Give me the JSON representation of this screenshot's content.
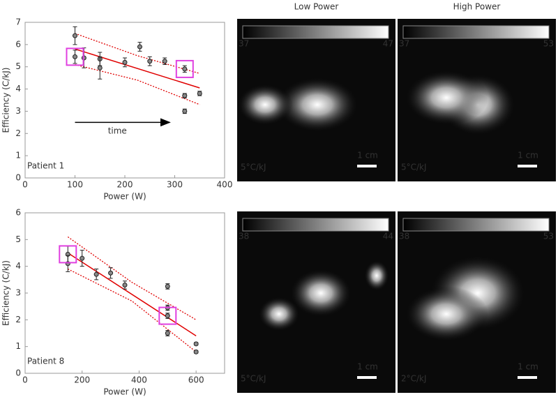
{
  "chart_data": [
    {
      "type": "scatter",
      "annotation": "Patient 1",
      "arrow_label": "time",
      "xlabel": "Power (W)",
      "ylabel": "Efficiency (C/kJ)",
      "xlim": [
        0,
        400
      ],
      "xticks": [
        0,
        100,
        200,
        300,
        400
      ],
      "ylim": [
        0,
        7
      ],
      "yticks": [
        0,
        1,
        2,
        3,
        4,
        5,
        6,
        7
      ],
      "series": [
        {
          "color": "#888888",
          "x": [
            100,
            100,
            118,
            150,
            150,
            200,
            230,
            250,
            280,
            320,
            320,
            320,
            350
          ],
          "values": [
            6.4,
            5.45,
            5.4,
            5.35,
            4.95,
            5.2,
            5.9,
            5.25,
            5.25,
            4.9,
            3.7,
            3.0,
            3.8
          ],
          "errors": [
            0.4,
            0.3,
            0.45,
            0.3,
            0.5,
            0.2,
            0.2,
            0.2,
            0.15,
            0.15,
            0.1,
            0.1,
            0.1
          ]
        }
      ],
      "highlight": [
        1,
        9
      ],
      "highlight_color": "#e040e0",
      "fit": {
        "color": "#e00000",
        "x": [
          100,
          350
        ],
        "values": [
          5.8,
          4.05
        ]
      },
      "bands": [
        {
          "x": [
            100,
            225,
            350
          ],
          "values": [
            6.5,
            5.5,
            4.7
          ]
        },
        {
          "x": [
            100,
            225,
            350
          ],
          "values": [
            5.1,
            4.4,
            3.3
          ]
        }
      ]
    },
    {
      "type": "scatter",
      "annotation": "Patient 8",
      "xlabel": "Power (W)",
      "ylabel": "Efficiency (C/kJ)",
      "xlim": [
        0,
        700
      ],
      "xticks": [
        0,
        200,
        400,
        600
      ],
      "ylim": [
        0,
        6
      ],
      "yticks": [
        0,
        1,
        2,
        3,
        4,
        5,
        6
      ],
      "series": [
        {
          "color": "#888888",
          "x": [
            150,
            150,
            200,
            250,
            300,
            350,
            500,
            500,
            500,
            500,
            600,
            600
          ],
          "values": [
            4.45,
            4.1,
            4.3,
            3.7,
            3.75,
            3.3,
            3.25,
            2.45,
            2.15,
            1.5,
            1.1,
            0.8
          ],
          "errors": [
            0.3,
            0.3,
            0.3,
            0.2,
            0.2,
            0.15,
            0.1,
            0.1,
            0.1,
            0.1,
            0.05,
            0.05
          ]
        }
      ],
      "highlight": [
        0,
        8
      ],
      "highlight_color": "#e040e0",
      "fit": {
        "color": "#e00000",
        "x": [
          150,
          600
        ],
        "values": [
          4.5,
          1.4
        ]
      },
      "bands": [
        {
          "x": [
            150,
            375,
            600
          ],
          "values": [
            5.1,
            3.4,
            2.0
          ]
        },
        {
          "x": [
            150,
            375,
            600
          ],
          "values": [
            3.9,
            2.7,
            0.8
          ]
        }
      ]
    }
  ],
  "images": {
    "headers": [
      "Low Power",
      "High Power"
    ],
    "panels": [
      {
        "cb_min": "37",
        "cb_max": "47",
        "label": "5°C/kJ",
        "scale": "1 cm"
      },
      {
        "cb_min": "37",
        "cb_max": "53",
        "label": "5°C/kJ",
        "scale": "1 cm"
      },
      {
        "cb_min": "38",
        "cb_max": "44",
        "label": "5°C/kJ",
        "scale": "1 cm"
      },
      {
        "cb_min": "38",
        "cb_max": "53",
        "label": "2°C/kJ",
        "scale": "1 cm"
      }
    ]
  }
}
